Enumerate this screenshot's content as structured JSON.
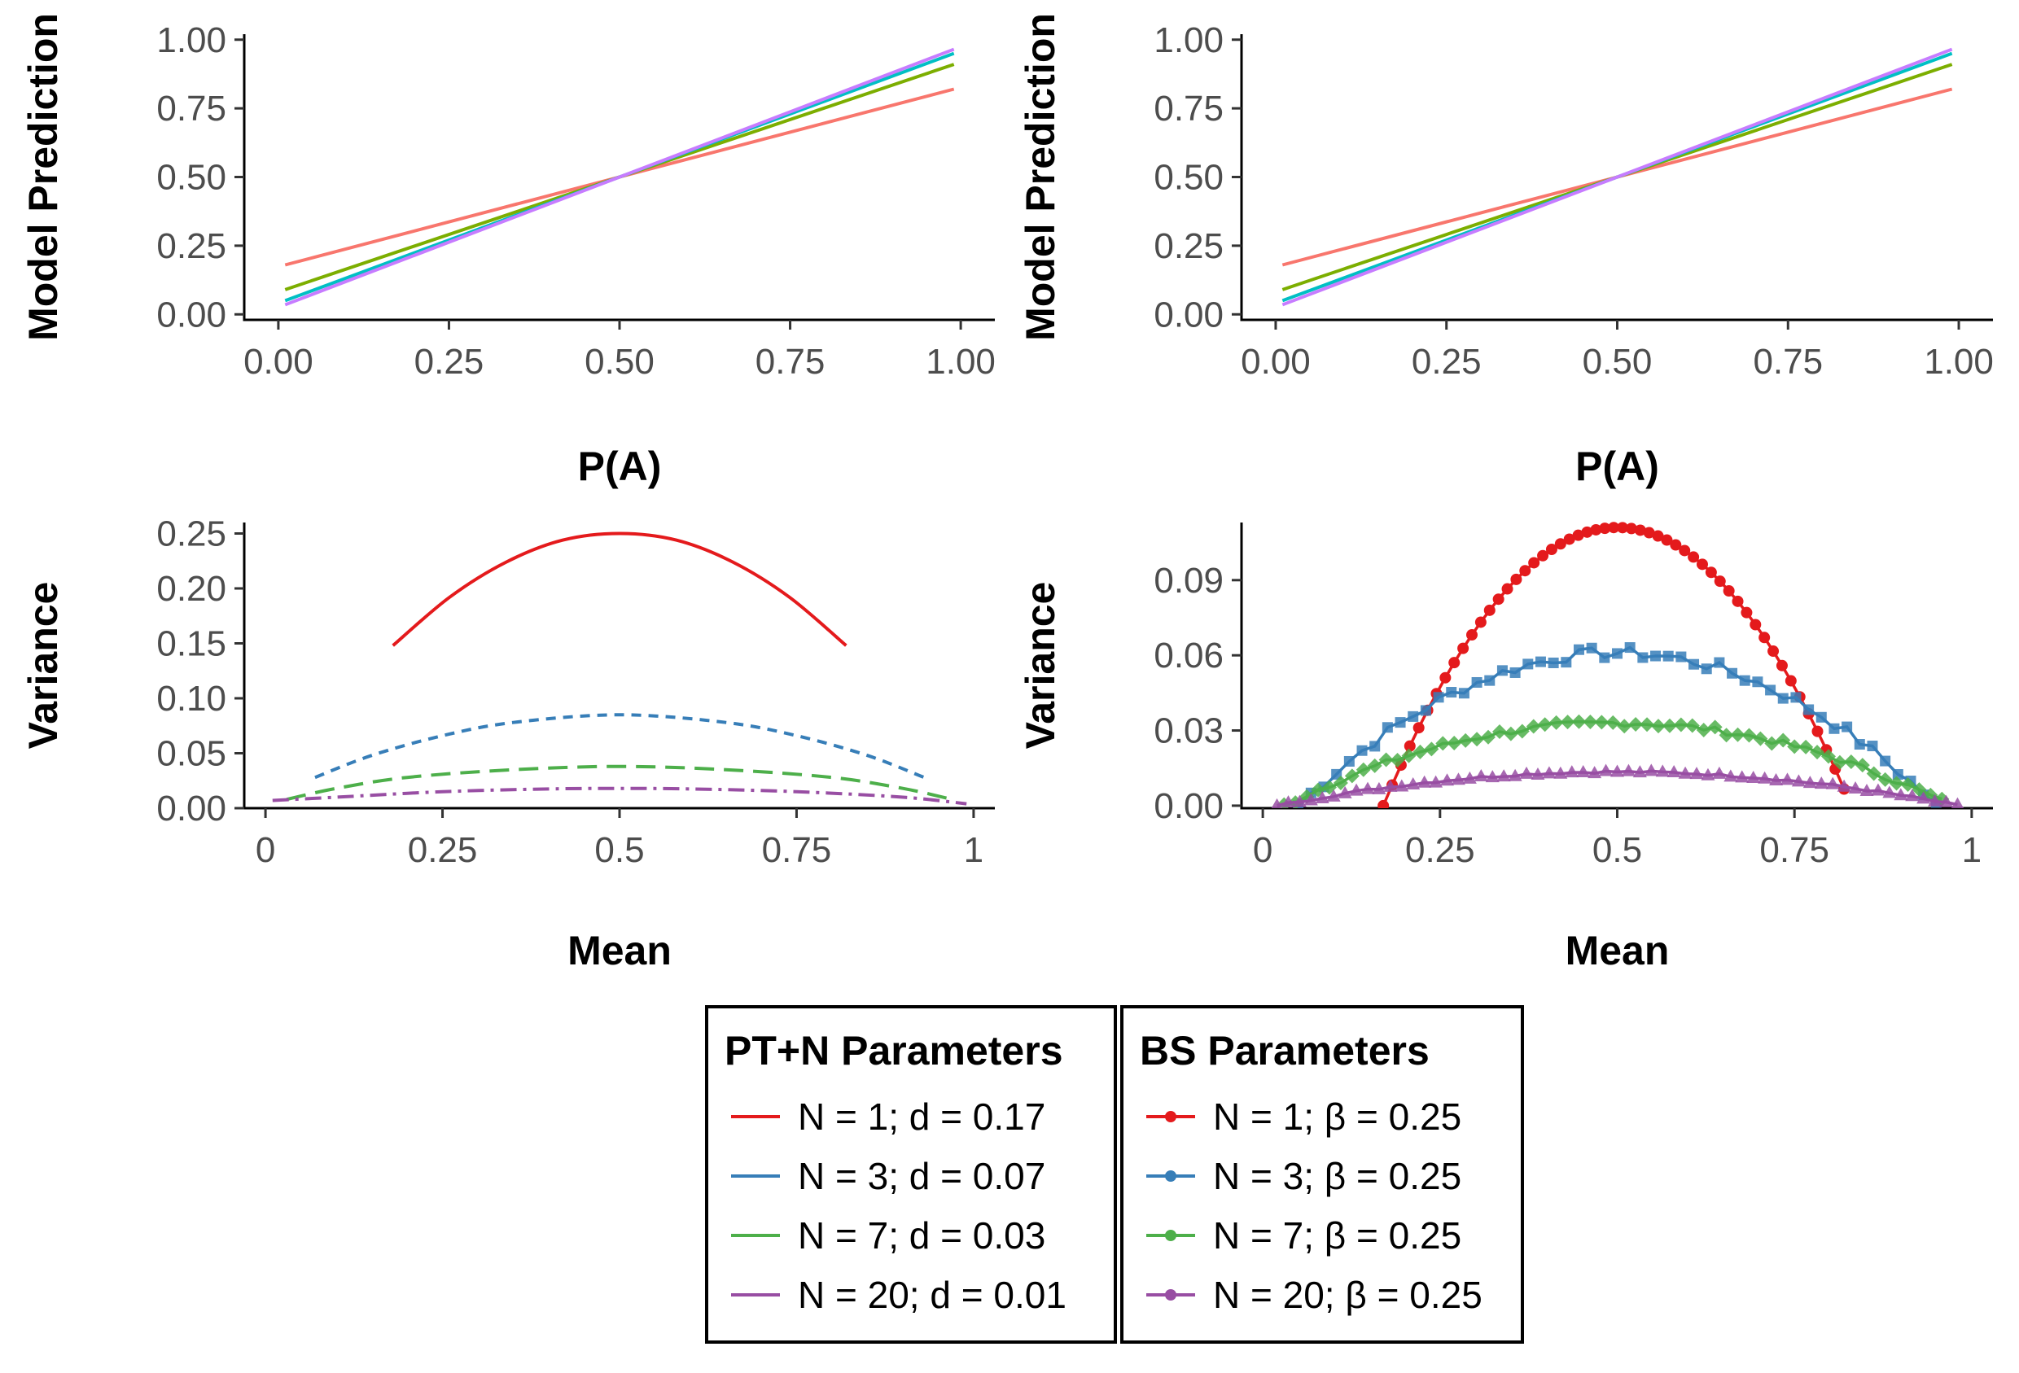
{
  "chart_data": [
    {
      "type": "line",
      "panel": "top-left",
      "xlabel": "P(A)",
      "ylabel": "Model Prediction",
      "xlim": [
        -0.05,
        1.05
      ],
      "ylim": [
        -0.02,
        1.02
      ],
      "xticks": [
        0,
        0.25,
        0.5,
        0.75,
        1.0
      ],
      "xtick_labels": [
        "0.00",
        "0.25",
        "0.50",
        "0.75",
        "1.00"
      ],
      "yticks": [
        0,
        0.25,
        0.5,
        0.75,
        1.0
      ],
      "ytick_labels": [
        "0.00",
        "0.25",
        "0.50",
        "0.75",
        "1.00"
      ],
      "grid": false,
      "series": [
        {
          "color": "#F8766D",
          "x": [
            0.01,
            0.99
          ],
          "y": [
            0.18,
            0.82
          ]
        },
        {
          "color": "#7CAE00",
          "x": [
            0.01,
            0.99
          ],
          "y": [
            0.09,
            0.91
          ]
        },
        {
          "color": "#00BFC4",
          "x": [
            0.01,
            0.99
          ],
          "y": [
            0.05,
            0.95
          ]
        },
        {
          "color": "#C77CFF",
          "x": [
            0.01,
            0.99
          ],
          "y": [
            0.035,
            0.965
          ]
        }
      ]
    },
    {
      "type": "line",
      "panel": "top-right",
      "xlabel": "P(A)",
      "ylabel": "Model Prediction",
      "xlim": [
        -0.05,
        1.05
      ],
      "ylim": [
        -0.02,
        1.02
      ],
      "xticks": [
        0,
        0.25,
        0.5,
        0.75,
        1.0
      ],
      "xtick_labels": [
        "0.00",
        "0.25",
        "0.50",
        "0.75",
        "1.00"
      ],
      "yticks": [
        0,
        0.25,
        0.5,
        0.75,
        1.0
      ],
      "ytick_labels": [
        "0.00",
        "0.25",
        "0.50",
        "0.75",
        "1.00"
      ],
      "grid": false,
      "series": [
        {
          "color": "#F8766D",
          "x": [
            0.01,
            0.99
          ],
          "y": [
            0.18,
            0.82
          ]
        },
        {
          "color": "#7CAE00",
          "x": [
            0.01,
            0.99
          ],
          "y": [
            0.09,
            0.91
          ]
        },
        {
          "color": "#00BFC4",
          "x": [
            0.01,
            0.99
          ],
          "y": [
            0.05,
            0.95
          ]
        },
        {
          "color": "#C77CFF",
          "x": [
            0.01,
            0.99
          ],
          "y": [
            0.035,
            0.965
          ]
        }
      ]
    },
    {
      "type": "line",
      "panel": "bottom-left",
      "xlabel": "Mean",
      "ylabel": "Variance",
      "xlim": [
        -0.03,
        1.03
      ],
      "ylim": [
        0,
        0.26
      ],
      "xticks": [
        0,
        0.25,
        0.5,
        0.75,
        1
      ],
      "xtick_labels": [
        "0",
        "0.25",
        "0.5",
        "0.75",
        "1"
      ],
      "yticks": [
        0,
        0.05,
        0.1,
        0.15,
        0.2,
        0.25
      ],
      "ytick_labels": [
        "0.00",
        "0.05",
        "0.10",
        "0.15",
        "0.20",
        "0.25"
      ],
      "grid": false,
      "series": [
        {
          "color": "#E41A1C",
          "dash": "",
          "x": [
            0.18,
            0.26,
            0.34,
            0.42,
            0.5,
            0.58,
            0.66,
            0.74,
            0.82
          ],
          "y": [
            0.148,
            0.192,
            0.224,
            0.244,
            0.25,
            0.244,
            0.224,
            0.192,
            0.148
          ]
        },
        {
          "color": "#377EB8",
          "dash": "12,9",
          "x": [
            0.07,
            0.15,
            0.25,
            0.35,
            0.5,
            0.65,
            0.75,
            0.85,
            0.93
          ],
          "y": [
            0.028,
            0.048,
            0.066,
            0.078,
            0.085,
            0.078,
            0.066,
            0.048,
            0.028
          ]
        },
        {
          "color": "#4DAF4A",
          "dash": "24,12",
          "x": [
            0.03,
            0.1,
            0.2,
            0.35,
            0.5,
            0.65,
            0.8,
            0.9,
            0.97
          ],
          "y": [
            0.008,
            0.018,
            0.028,
            0.035,
            0.038,
            0.035,
            0.028,
            0.018,
            0.008
          ]
        },
        {
          "color": "#984EA3",
          "dash": "20,8,4,8",
          "x": [
            0.01,
            0.1,
            0.25,
            0.4,
            0.5,
            0.6,
            0.75,
            0.9,
            0.99
          ],
          "y": [
            0.007,
            0.01,
            0.015,
            0.0175,
            0.018,
            0.0175,
            0.015,
            0.01,
            0.004
          ]
        }
      ]
    },
    {
      "type": "scatter",
      "panel": "bottom-right",
      "xlabel": "Mean",
      "ylabel": "Variance",
      "xlim": [
        -0.03,
        1.03
      ],
      "ylim": [
        -0.001,
        0.113
      ],
      "xticks": [
        0,
        0.25,
        0.5,
        0.75,
        1
      ],
      "xtick_labels": [
        "0",
        "0.25",
        "0.5",
        "0.75",
        "1"
      ],
      "yticks": [
        0,
        0.03,
        0.06,
        0.09
      ],
      "ytick_labels": [
        "0.00",
        "0.03",
        "0.06",
        "0.09"
      ],
      "grid": false,
      "series": [
        {
          "color": "#E41A1C",
          "marker": "circle",
          "peak": 0.111,
          "x_range": [
            0.17,
            0.83
          ],
          "step": 0.0125
        },
        {
          "color": "#377EB8",
          "marker": "square",
          "peak": 0.061,
          "x_range": [
            0.05,
            0.95
          ],
          "step": 0.018
        },
        {
          "color": "#4DAF4A",
          "marker": "diamond",
          "peak": 0.033,
          "x_range": [
            0.03,
            0.97
          ],
          "step": 0.016
        },
        {
          "color": "#984EA3",
          "marker": "triangle",
          "peak": 0.0135,
          "x_range": [
            0.02,
            0.98
          ],
          "step": 0.016
        }
      ]
    }
  ],
  "legends": {
    "ptn": {
      "title": "PT+N Parameters",
      "items": [
        {
          "label": "N = 1; d = 0.17",
          "color": "#E41A1C"
        },
        {
          "label": "N = 3; d = 0.07",
          "color": "#377EB8"
        },
        {
          "label": "N = 7; d = 0.03",
          "color": "#4DAF4A"
        },
        {
          "label": "N = 20; d = 0.01",
          "color": "#984EA3"
        }
      ]
    },
    "bs": {
      "title": "BS Parameters",
      "items": [
        {
          "label": "N = 1; β = 0.25",
          "color": "#E41A1C"
        },
        {
          "label": "N = 3; β = 0.25",
          "color": "#377EB8"
        },
        {
          "label": "N = 7; β = 0.25",
          "color": "#4DAF4A"
        },
        {
          "label": "N = 20; β = 0.25",
          "color": "#984EA3"
        }
      ]
    }
  }
}
